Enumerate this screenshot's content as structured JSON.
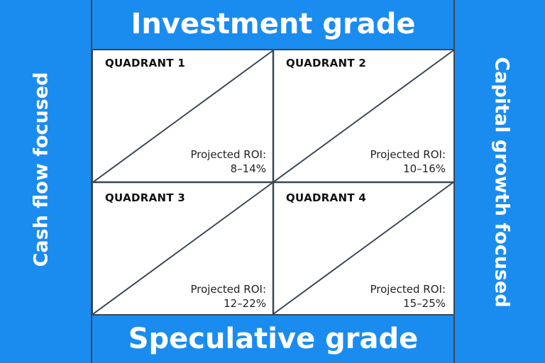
{
  "top_label": "Investment grade",
  "bottom_label": "Speculative grade",
  "left_label": "Cash flow focused",
  "right_label": "Capital growth focused",
  "quadrants": [
    {
      "title": "QUADRANT 1",
      "roi_label": "Projected ROI:",
      "roi_value": "8–14%"
    },
    {
      "title": "QUADRANT 2",
      "roi_label": "Projected ROI:",
      "roi_value": "10–16%"
    },
    {
      "title": "QUADRANT 3",
      "roi_label": "Projected ROI:",
      "roi_value": "12–22%"
    },
    {
      "title": "QUADRANT 4",
      "roi_label": "Projected ROI:",
      "roi_value": "15–25%"
    }
  ],
  "colors": {
    "background": "#1a8cf0",
    "lines": "#3b4754",
    "quadrant_fill": "#ffffff"
  }
}
